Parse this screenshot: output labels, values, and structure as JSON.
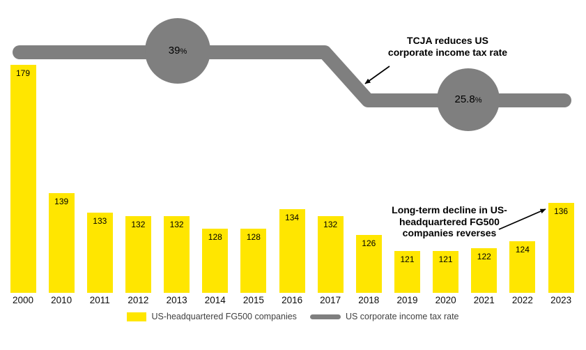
{
  "chart_data": {
    "type": "bar+line",
    "title": "",
    "categories": [
      "2000",
      "2010",
      "2011",
      "2012",
      "2013",
      "2014",
      "2015",
      "2016",
      "2017",
      "2018",
      "2019",
      "2020",
      "2021",
      "2022",
      "2023"
    ],
    "series": [
      {
        "name": "US-headquartered FG500 companies",
        "type": "bar",
        "color": "#FFE600",
        "values": [
          179,
          139,
          133,
          132,
          132,
          128,
          128,
          134,
          132,
          126,
          121,
          121,
          122,
          124,
          136
        ]
      },
      {
        "name": "US corporate income tax rate",
        "type": "line",
        "color": "#7F7F7F",
        "values_pct": [
          39,
          39,
          39,
          39,
          39,
          39,
          39,
          39,
          39,
          25.8,
          25.8,
          25.8,
          25.8,
          25.8,
          25.8
        ]
      }
    ],
    "bar_axis": {
      "ymin": 108,
      "ylim": [
        108,
        180
      ]
    },
    "line_labels": {
      "before": {
        "value": "39",
        "pct": "%"
      },
      "after": {
        "value": "25.8",
        "pct": "%"
      }
    },
    "annotations": [
      {
        "id": "tcja",
        "text": "TCJA reduces US\ncorporate income tax rate"
      },
      {
        "id": "reversal",
        "text": "Long-term decline in US-\nheadquartered FG500\ncompanies reverses"
      }
    ]
  },
  "legend": {
    "items": [
      {
        "label": "US-headquartered FG500 companies",
        "swatch": "bar",
        "color": "#FFE600"
      },
      {
        "label": "US corporate income tax rate",
        "swatch": "line",
        "color": "#7F7F7F"
      }
    ]
  }
}
